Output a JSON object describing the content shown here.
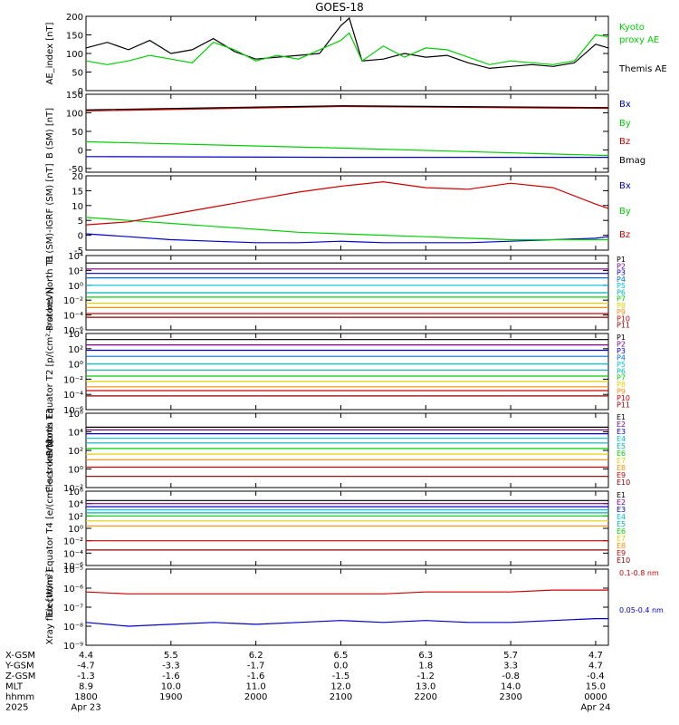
{
  "title": "GOES-18",
  "colors": {
    "black": "#000000",
    "red": "#d00000",
    "green": "#00d000",
    "blue": "#0000c8",
    "darkred": "#8b0000",
    "navy": "#00008b",
    "cyan": "#00c0e0",
    "teal": "#00b0b0",
    "yellow": "#e0d000",
    "orange": "#ff8c00",
    "purple": "#800080"
  },
  "chart_data": [
    {
      "type": "line",
      "ylabel": "AE_index [nT]",
      "ylim": [
        0,
        200
      ],
      "yticks": [
        0,
        50,
        100,
        150,
        200
      ],
      "yticklabels": [
        "0",
        "50",
        "100",
        "150",
        "200"
      ],
      "series": [
        {
          "name": "Themis AE",
          "color": "#000000",
          "x": [
            18.0,
            18.25,
            18.5,
            18.75,
            19.0,
            19.25,
            19.5,
            19.75,
            20.0,
            20.25,
            20.5,
            20.75,
            21.0,
            21.1,
            21.25,
            21.5,
            21.75,
            22.0,
            22.25,
            22.5,
            22.75,
            23.0,
            23.25,
            23.5,
            23.75,
            24.0,
            24.15
          ],
          "y": [
            115,
            130,
            110,
            135,
            100,
            110,
            140,
            105,
            85,
            90,
            95,
            100,
            175,
            195,
            80,
            85,
            100,
            90,
            95,
            75,
            60,
            65,
            70,
            65,
            75,
            125,
            115
          ]
        },
        {
          "name": "Kyoto proxy AE",
          "color": "#00d000",
          "x": [
            18.0,
            18.25,
            18.5,
            18.75,
            19.0,
            19.25,
            19.5,
            19.75,
            20.0,
            20.25,
            20.5,
            20.75,
            21.0,
            21.1,
            21.25,
            21.5,
            21.75,
            22.0,
            22.25,
            22.5,
            22.75,
            23.0,
            23.25,
            23.5,
            23.75,
            24.0,
            24.15
          ],
          "y": [
            80,
            70,
            80,
            95,
            85,
            75,
            130,
            110,
            80,
            95,
            85,
            110,
            135,
            155,
            80,
            120,
            90,
            115,
            110,
            90,
            70,
            80,
            75,
            70,
            80,
            150,
            145
          ]
        }
      ]
    },
    {
      "type": "line",
      "ylabel": "B (SM) [nT]",
      "ylim": [
        -60,
        150
      ],
      "yticks": [
        -50,
        0,
        50,
        100,
        150
      ],
      "yticklabels": [
        "-50",
        "0",
        "50",
        "100",
        "150"
      ],
      "series": [
        {
          "name": "Bx",
          "color": "#0000c8",
          "x": [
            18.0,
            21.0,
            24.15
          ],
          "y": [
            -18,
            -20,
            -20
          ]
        },
        {
          "name": "By",
          "color": "#00d000",
          "x": [
            18.0,
            21.0,
            24.15
          ],
          "y": [
            22,
            5,
            -15
          ]
        },
        {
          "name": "Bz",
          "color": "#d00000",
          "x": [
            18.0,
            21.0,
            24.15
          ],
          "y": [
            105,
            117,
            112
          ]
        },
        {
          "name": "Bmag",
          "color": "#000000",
          "x": [
            18.0,
            21.0,
            24.15
          ],
          "y": [
            108,
            119,
            114
          ]
        }
      ]
    },
    {
      "type": "line",
      "ylabel": "B (SM)-IGRF (SM) [nT]",
      "ylim": [
        -5,
        20
      ],
      "yticks": [
        -5,
        0,
        5,
        10,
        15,
        20
      ],
      "yticklabels": [
        "-5",
        "0",
        "5",
        "10",
        "15",
        "20"
      ],
      "series": [
        {
          "name": "Bx",
          "color": "#0000c8",
          "x": [
            18.0,
            18.5,
            19.0,
            19.5,
            20.0,
            20.5,
            21.0,
            21.5,
            22.0,
            22.5,
            23.0,
            23.5,
            24.0,
            24.15
          ],
          "y": [
            0.5,
            -0.5,
            -1.5,
            -2.0,
            -2.5,
            -2.5,
            -2.0,
            -2.5,
            -2.5,
            -2.5,
            -2.0,
            -1.5,
            -1.0,
            -0.5
          ]
        },
        {
          "name": "By",
          "color": "#00d000",
          "x": [
            18.0,
            18.5,
            19.0,
            19.5,
            20.0,
            20.5,
            21.0,
            21.5,
            22.0,
            22.5,
            23.0,
            23.5,
            24.0,
            24.15
          ],
          "y": [
            6.0,
            5.0,
            4.0,
            3.0,
            2.0,
            1.0,
            0.5,
            0.0,
            -0.5,
            -1.0,
            -1.5,
            -1.5,
            -1.5,
            -1.5
          ]
        },
        {
          "name": "Bz",
          "color": "#d00000",
          "x": [
            18.0,
            18.5,
            19.0,
            19.5,
            20.0,
            20.5,
            21.0,
            21.5,
            22.0,
            22.5,
            23.0,
            23.5,
            24.0,
            24.15
          ],
          "y": [
            3.5,
            4.5,
            7.0,
            9.5,
            12.0,
            14.5,
            16.5,
            18.0,
            16.0,
            15.5,
            17.5,
            16.0,
            10.5,
            9.0
          ]
        }
      ]
    },
    {
      "type": "line",
      "ylabel": "Protons North T1",
      "yscale": "log",
      "ylim": [
        -6,
        4
      ],
      "yticks": [
        -6,
        -4,
        -2,
        0,
        2,
        4
      ],
      "yticklabels": [
        "10⁻⁶",
        "10⁻⁴",
        "10⁻²",
        "10⁰",
        "10²",
        "10⁴"
      ],
      "series": [
        {
          "name": "P1",
          "color": "#000000",
          "x": [
            18.0,
            24.15
          ],
          "log10_y": [
            3.0,
            3.0
          ]
        },
        {
          "name": "P2",
          "color": "#800080",
          "x": [
            18.0,
            24.15
          ],
          "log10_y": [
            2.2,
            2.2
          ]
        },
        {
          "name": "P3",
          "color": "#0000c8",
          "x": [
            18.0,
            24.15
          ],
          "log10_y": [
            1.6,
            1.6
          ]
        },
        {
          "name": "P4",
          "color": "#0070e0",
          "x": [
            18.0,
            24.15
          ],
          "log10_y": [
            1.0,
            1.0
          ]
        },
        {
          "name": "P5",
          "color": "#00c0e0",
          "x": [
            18.0,
            24.15
          ],
          "log10_y": [
            0.0,
            0.0
          ]
        },
        {
          "name": "P6",
          "color": "#00b0b0",
          "x": [
            18.0,
            24.15
          ],
          "log10_y": [
            -1.0,
            -1.0
          ]
        },
        {
          "name": "P7",
          "color": "#00d000",
          "x": [
            18.0,
            24.15
          ],
          "log10_y": [
            -1.6,
            -1.6
          ]
        },
        {
          "name": "P8",
          "color": "#e0d000",
          "x": [
            18.0,
            24.15
          ],
          "log10_y": [
            -2.4,
            -2.4
          ]
        },
        {
          "name": "P9",
          "color": "#ff8c00",
          "x": [
            18.0,
            24.15
          ],
          "log10_y": [
            -3.0,
            -3.0
          ]
        },
        {
          "name": "P10",
          "color": "#d00000",
          "x": [
            18.0,
            24.15
          ],
          "log10_y": [
            -3.8,
            -3.8
          ]
        },
        {
          "name": "P11",
          "color": "#8b0000",
          "x": [
            18.0,
            24.15
          ],
          "log10_y": [
            -4.3,
            -4.3
          ]
        }
      ]
    },
    {
      "type": "line",
      "ylabel": "Protons Equator T2 [p/(cm²-s-sr-keV)]",
      "yscale": "log",
      "ylim": [
        -6,
        4
      ],
      "yticks": [
        -6,
        -4,
        -2,
        0,
        2,
        4
      ],
      "yticklabels": [
        "10⁻⁶",
        "10⁻⁴",
        "10⁻²",
        "10⁰",
        "10²",
        "10⁴"
      ],
      "series": [
        {
          "name": "P1",
          "color": "#000000",
          "x": [
            18.0,
            24.15
          ],
          "log10_y": [
            3.2,
            3.2
          ]
        },
        {
          "name": "P2",
          "color": "#800080",
          "x": [
            18.0,
            24.15
          ],
          "log10_y": [
            2.5,
            2.5
          ]
        },
        {
          "name": "P3",
          "color": "#0000c8",
          "x": [
            18.0,
            24.15
          ],
          "log10_y": [
            1.8,
            1.8
          ]
        },
        {
          "name": "P4",
          "color": "#0070e0",
          "x": [
            18.0,
            24.15
          ],
          "log10_y": [
            1.0,
            1.0
          ]
        },
        {
          "name": "P5",
          "color": "#00c0e0",
          "x": [
            18.0,
            24.15
          ],
          "log10_y": [
            0.0,
            0.0
          ]
        },
        {
          "name": "P6",
          "color": "#00b0b0",
          "x": [
            18.0,
            24.15
          ],
          "log10_y": [
            -0.8,
            -0.8
          ]
        },
        {
          "name": "P7",
          "color": "#00d000",
          "x": [
            18.0,
            24.15
          ],
          "log10_y": [
            -1.6,
            -1.6
          ]
        },
        {
          "name": "P8",
          "color": "#e0d000",
          "x": [
            18.0,
            24.15
          ],
          "log10_y": [
            -2.3,
            -2.3
          ]
        },
        {
          "name": "P9",
          "color": "#ff8c00",
          "x": [
            18.0,
            24.15
          ],
          "log10_y": [
            -3.0,
            -3.0
          ]
        },
        {
          "name": "P10",
          "color": "#d00000",
          "x": [
            18.0,
            24.15
          ],
          "log10_y": [
            -3.5,
            -3.5
          ]
        },
        {
          "name": "P11",
          "color": "#8b0000",
          "x": [
            18.0,
            24.15
          ],
          "log10_y": [
            -4.2,
            -4.2
          ]
        }
      ]
    },
    {
      "type": "line",
      "ylabel": "Electrons North T3",
      "yscale": "log",
      "ylim": [
        -2,
        6
      ],
      "yticks": [
        -2,
        0,
        2,
        4,
        6
      ],
      "yticklabels": [
        "10⁻²",
        "10⁰",
        "10²",
        "10⁴",
        "10⁶"
      ],
      "series": [
        {
          "name": "E1",
          "color": "#000000",
          "x": [
            18.0,
            24.15
          ],
          "log10_y": [
            4.5,
            4.5
          ]
        },
        {
          "name": "E2",
          "color": "#800080",
          "x": [
            18.0,
            24.15
          ],
          "log10_y": [
            4.2,
            4.2
          ]
        },
        {
          "name": "E3",
          "color": "#0000c8",
          "x": [
            18.0,
            24.15
          ],
          "log10_y": [
            3.8,
            3.8
          ]
        },
        {
          "name": "E4",
          "color": "#00c0e0",
          "x": [
            18.0,
            24.15
          ],
          "log10_y": [
            3.3,
            3.3
          ]
        },
        {
          "name": "E5",
          "color": "#00b0b0",
          "x": [
            18.0,
            24.15
          ],
          "log10_y": [
            2.8,
            2.8
          ]
        },
        {
          "name": "E6",
          "color": "#00d000",
          "x": [
            18.0,
            24.15
          ],
          "log10_y": [
            2.2,
            2.2
          ]
        },
        {
          "name": "E7",
          "color": "#e0d000",
          "x": [
            18.0,
            24.15
          ],
          "log10_y": [
            1.6,
            1.6
          ]
        },
        {
          "name": "E8",
          "color": "#ff8c00",
          "x": [
            18.0,
            24.15
          ],
          "log10_y": [
            1.0,
            1.0
          ]
        },
        {
          "name": "E9",
          "color": "#d00000",
          "x": [
            18.0,
            24.15
          ],
          "log10_y": [
            0.2,
            0.2
          ]
        },
        {
          "name": "E10",
          "color": "#8b0000",
          "x": [
            18.0,
            24.15
          ],
          "log10_y": [
            -0.8,
            -0.8
          ]
        }
      ]
    },
    {
      "type": "line",
      "ylabel": "Electrons Equator T4 [e/(cm²-s-sr-keV)]",
      "yscale": "log",
      "ylim": [
        -6,
        6
      ],
      "yticks": [
        -6,
        -4,
        -2,
        0,
        2,
        4,
        6
      ],
      "yticklabels": [
        "10⁻⁶",
        "10⁻⁴",
        "10⁻²",
        "10⁰",
        "10²",
        "10⁴",
        "10⁶"
      ],
      "series": [
        {
          "name": "E1",
          "color": "#000000",
          "x": [
            18.0,
            24.15
          ],
          "log10_y": [
            4.5,
            4.5
          ]
        },
        {
          "name": "E2",
          "color": "#800080",
          "x": [
            18.0,
            24.15
          ],
          "log10_y": [
            4.0,
            4.0
          ]
        },
        {
          "name": "E3",
          "color": "#0000c8",
          "x": [
            18.0,
            24.15
          ],
          "log10_y": [
            3.5,
            3.5
          ]
        },
        {
          "name": "E4",
          "color": "#00c0e0",
          "x": [
            18.0,
            24.15
          ],
          "log10_y": [
            3.0,
            3.0
          ]
        },
        {
          "name": "E5",
          "color": "#00b0b0",
          "x": [
            18.0,
            24.15
          ],
          "log10_y": [
            2.5,
            2.5
          ]
        },
        {
          "name": "E6",
          "color": "#00d000",
          "x": [
            18.0,
            24.15
          ],
          "log10_y": [
            2.0,
            2.0
          ]
        },
        {
          "name": "E7",
          "color": "#e0d000",
          "x": [
            18.0,
            24.15
          ],
          "log10_y": [
            1.2,
            1.2
          ]
        },
        {
          "name": "E8",
          "color": "#ff8c00",
          "x": [
            18.0,
            24.15
          ],
          "log10_y": [
            0.4,
            0.4
          ]
        },
        {
          "name": "E9",
          "color": "#d00000",
          "x": [
            18.0,
            24.15
          ],
          "log10_y": [
            -2.0,
            -2.0
          ]
        },
        {
          "name": "E10",
          "color": "#8b0000",
          "x": [
            18.0,
            24.15
          ],
          "log10_y": [
            -3.5,
            -3.5
          ]
        }
      ]
    },
    {
      "type": "line",
      "ylabel": "Xray flux [W/m²]",
      "yscale": "log",
      "ylim": [
        -9,
        -5
      ],
      "yticks": [
        -9,
        -8,
        -7,
        -6,
        -5
      ],
      "yticklabels": [
        "10⁻⁹",
        "10⁻⁸",
        "10⁻⁷",
        "10⁻⁶",
        "10⁻⁵"
      ],
      "series": [
        {
          "name": "0.1-0.8 nm",
          "color": "#d00000",
          "x": [
            18.0,
            18.5,
            19.0,
            19.5,
            20.0,
            20.5,
            21.0,
            21.5,
            22.0,
            22.5,
            23.0,
            23.5,
            24.0,
            24.15
          ],
          "log10_y": [
            -6.2,
            -6.3,
            -6.3,
            -6.3,
            -6.3,
            -6.3,
            -6.3,
            -6.3,
            -6.2,
            -6.2,
            -6.2,
            -6.1,
            -6.1,
            -6.1
          ]
        },
        {
          "name": "0.05-0.4 nm",
          "color": "#0000c8",
          "x": [
            18.0,
            18.5,
            19.0,
            19.5,
            20.0,
            20.5,
            21.0,
            21.5,
            22.0,
            22.5,
            23.0,
            23.5,
            24.0,
            24.15
          ],
          "log10_y": [
            -7.8,
            -8.0,
            -7.9,
            -7.8,
            -7.9,
            -7.8,
            -7.7,
            -7.8,
            -7.7,
            -7.8,
            -7.8,
            -7.7,
            -7.6,
            -7.6
          ]
        }
      ]
    }
  ],
  "axis": {
    "x_ticks": [
      18,
      19,
      20,
      21,
      22,
      23,
      24
    ],
    "row_labels": [
      "X-GSM",
      "Y-GSM",
      "Z-GSM",
      "MLT",
      "hhmm",
      "2025"
    ],
    "rows": [
      [
        "4.4",
        "5.5",
        "6.2",
        "6.5",
        "6.3",
        "5.7",
        "4.7"
      ],
      [
        "-4.7",
        "-3.3",
        "-1.7",
        "0.0",
        "1.8",
        "3.3",
        "4.7"
      ],
      [
        "-1.3",
        "-1.6",
        "-1.6",
        "-1.5",
        "-1.2",
        "-0.8",
        "-0.4"
      ],
      [
        "8.9",
        "10.0",
        "11.0",
        "12.0",
        "13.0",
        "14.0",
        "15.0"
      ],
      [
        "1800",
        "1900",
        "2000",
        "2100",
        "2200",
        "2300",
        "0000"
      ],
      [
        "Apr 23",
        "",
        "",
        "",
        "",
        "",
        "Apr 24"
      ]
    ]
  }
}
